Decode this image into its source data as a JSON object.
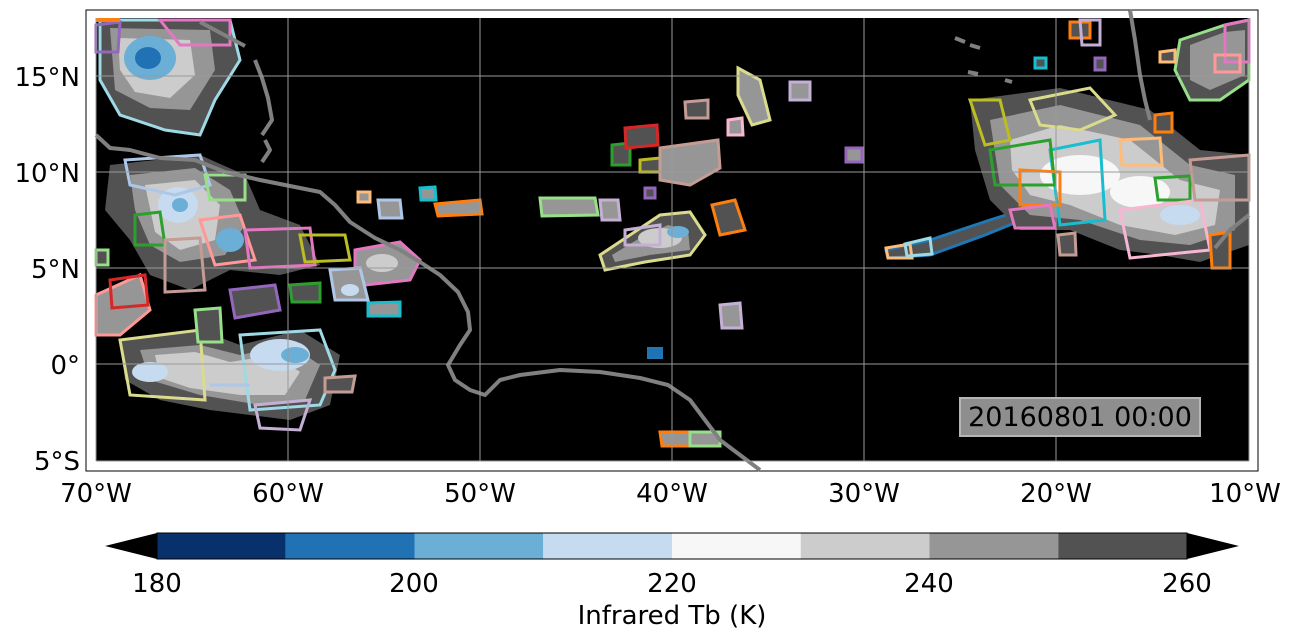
{
  "map": {
    "timestamp": "20160801 00:00",
    "lon_labels": [
      "70°W",
      "60°W",
      "50°W",
      "40°W",
      "30°W",
      "20°W",
      "10°W"
    ],
    "lat_labels": [
      "15°N",
      "10°N",
      "5°N",
      "0°",
      "5°S"
    ],
    "extent": {
      "lon_min": -70,
      "lon_max": -10,
      "lat_min": -5,
      "lat_max": 18
    },
    "background": "#000000",
    "coastline_color": "#808080",
    "gridlines": true,
    "grid_color": "#9a9a9a"
  },
  "colorbar": {
    "title": "Infrared Tb (K)",
    "tick_labels": [
      "180",
      "200",
      "220",
      "240",
      "260"
    ],
    "bounds": [
      180,
      190,
      200,
      210,
      220,
      230,
      240,
      250,
      260
    ],
    "colors": [
      "#08306b",
      "#2171b5",
      "#6baed6",
      "#c6dbef",
      "#f7f7f7",
      "#cccccc",
      "#969696",
      "#525252"
    ],
    "extend_low_color": "#000000",
    "extend_high_color": "#000000"
  },
  "legend_colors": [
    "#1f77b4",
    "#ff7f0e",
    "#2ca02c",
    "#d62728",
    "#9467bd",
    "#8c564b",
    "#e377c2",
    "#7f7f7f",
    "#bcbd22",
    "#17becf",
    "#aec7e8",
    "#ffbb78",
    "#98df8a",
    "#ff9896",
    "#c5b0d5",
    "#c49c94",
    "#f7b6d2",
    "#dbdb8d",
    "#9edae5"
  ]
}
